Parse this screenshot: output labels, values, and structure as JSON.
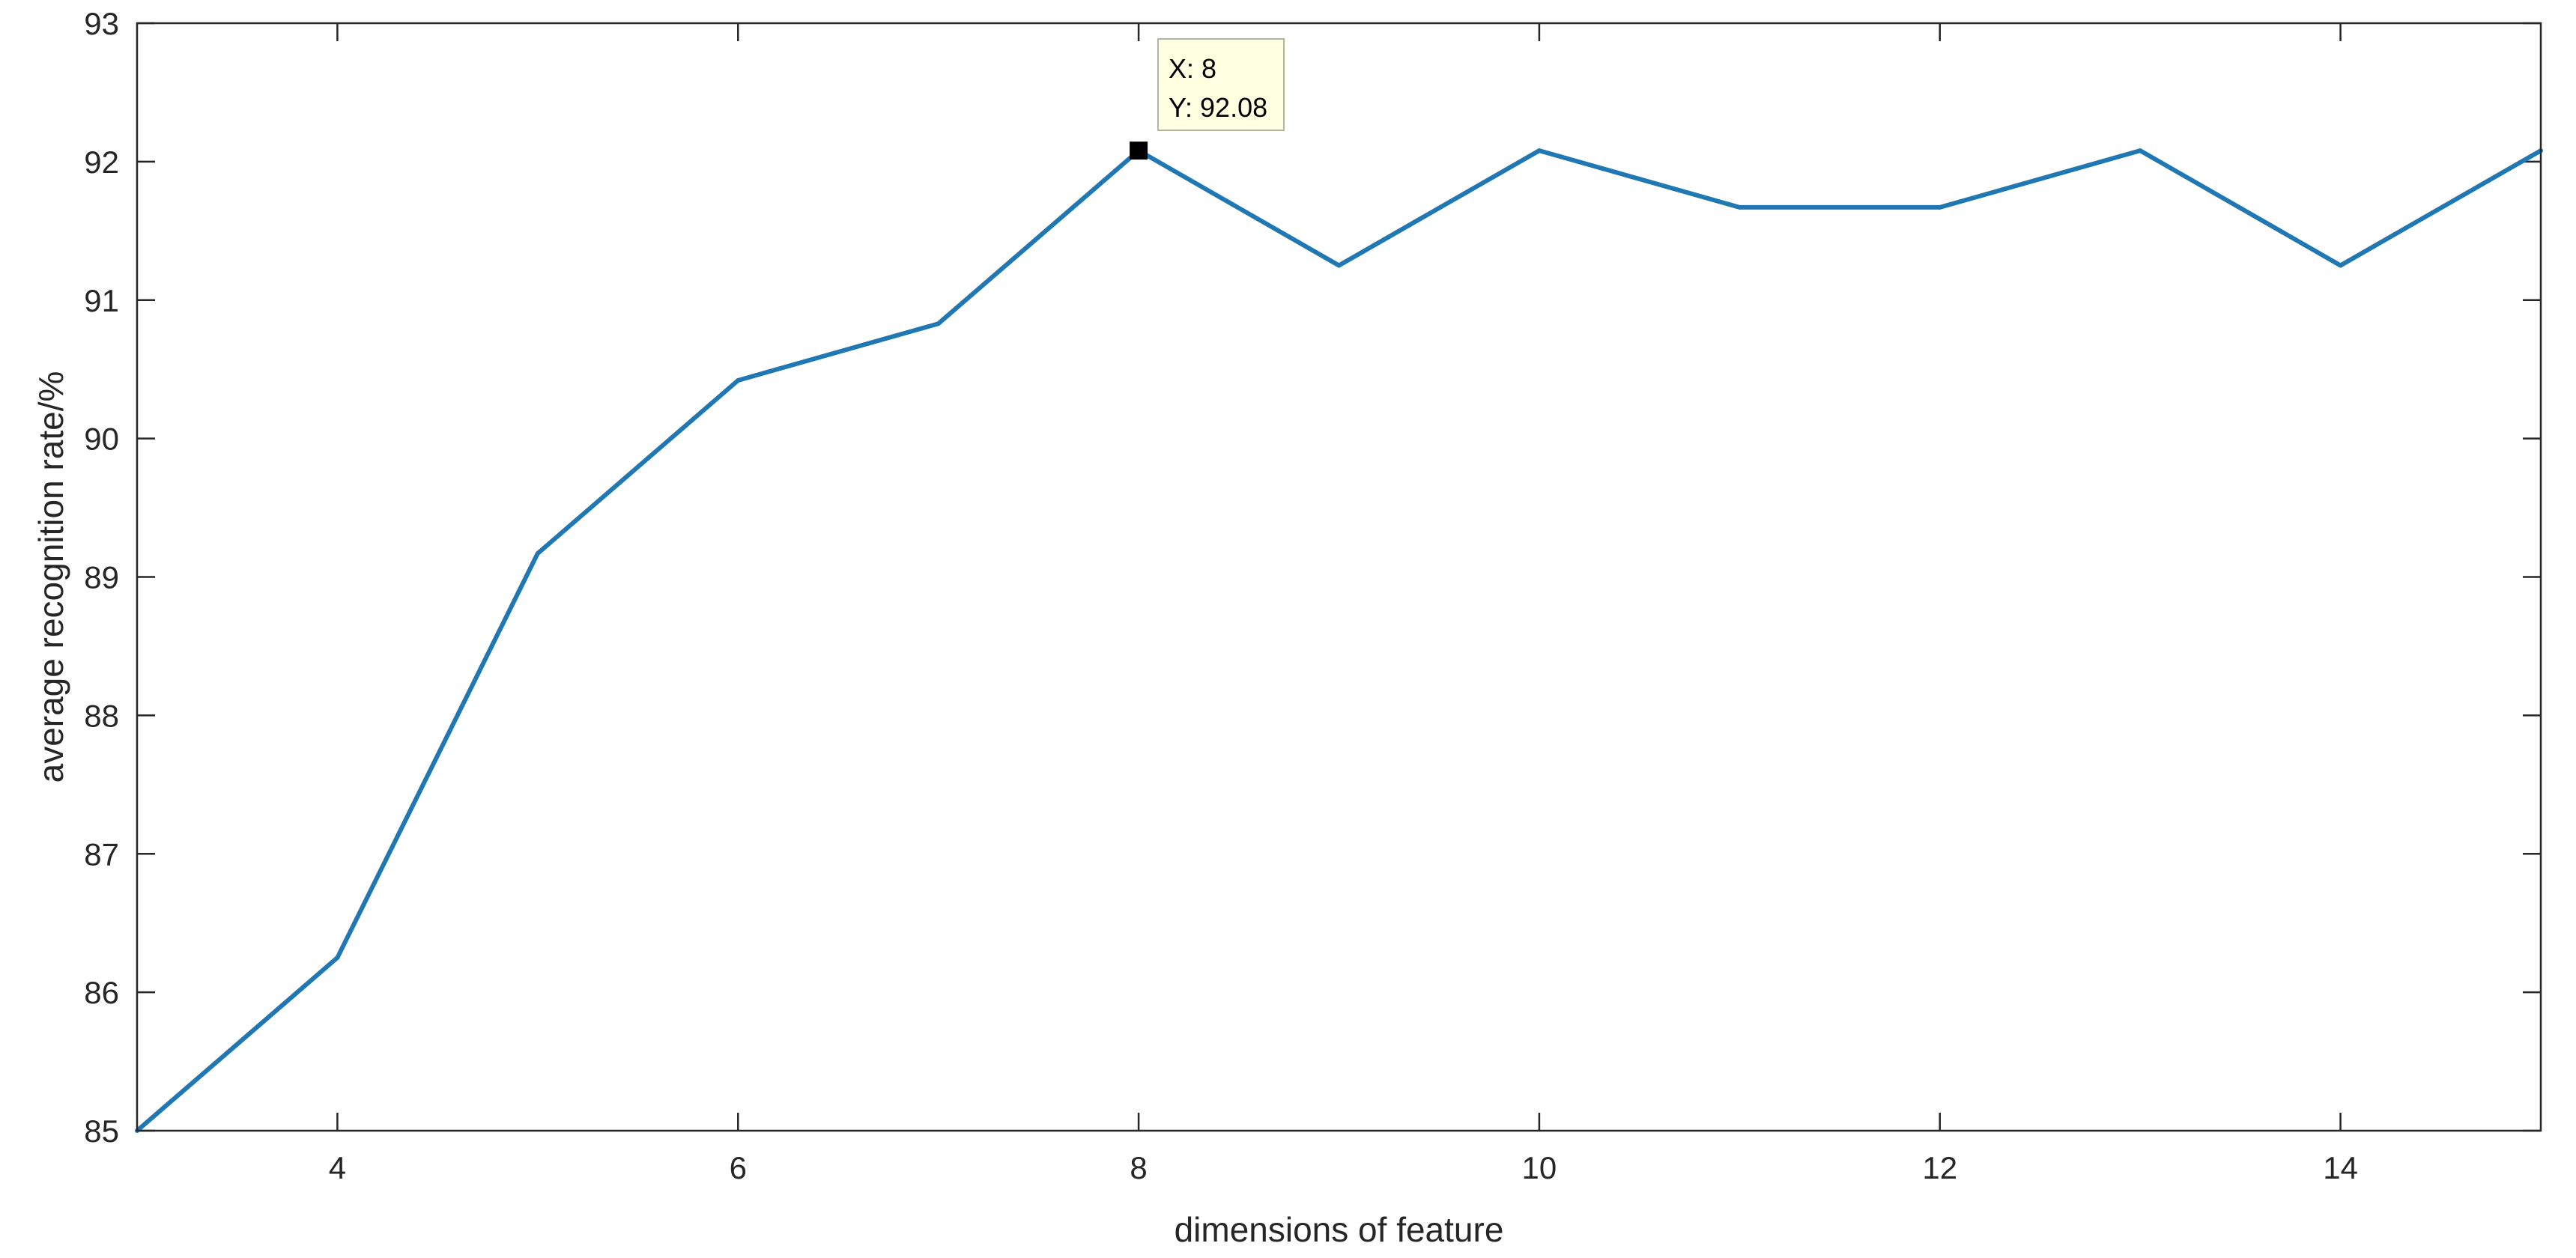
{
  "chart_data": {
    "type": "line",
    "xlabel": "dimensions of feature",
    "ylabel": "average recognition rate/%",
    "xlim": [
      3,
      15
    ],
    "ylim": [
      85,
      93
    ],
    "xticks": [
      4,
      6,
      8,
      10,
      12,
      14
    ],
    "yticks": [
      85,
      86,
      87,
      88,
      89,
      90,
      91,
      92,
      93
    ],
    "grid": false,
    "series": [
      {
        "color": "#1f77b4",
        "x": [
          3,
          4,
          5,
          6,
          7,
          8,
          9,
          10,
          11,
          12,
          13,
          14,
          15
        ],
        "y": [
          85.0,
          86.25,
          89.17,
          90.42,
          90.83,
          92.08,
          91.25,
          92.08,
          91.67,
          91.67,
          92.08,
          91.25,
          92.08
        ]
      }
    ],
    "datatip": {
      "x": 8,
      "y": 92.08,
      "x_text": "X: 8",
      "y_text": "Y: 92.08"
    }
  }
}
